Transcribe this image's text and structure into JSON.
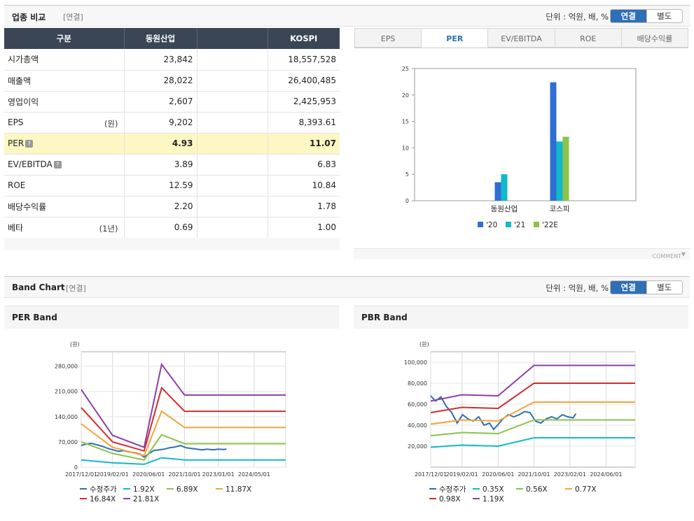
{
  "industry": {
    "title": "업종 비교",
    "sub": "[연결]",
    "unit": "단위 : 억원, 배, %",
    "toggle": {
      "on": "연결",
      "off": "별도"
    },
    "table": {
      "headers": [
        "구분",
        "동원산업",
        "",
        "KOSPI"
      ],
      "rows": [
        {
          "label": "시가총액",
          "unit": "",
          "company": "23,842",
          "kospi": "18,557,528"
        },
        {
          "label": "매출액",
          "unit": "",
          "company": "28,022",
          "kospi": "26,400,485"
        },
        {
          "label": "영업이익",
          "unit": "",
          "company": "2,607",
          "kospi": "2,425,953"
        },
        {
          "label": "EPS",
          "unit": "(원)",
          "company": "9,202",
          "kospi": "8,393.61"
        },
        {
          "label": "PER",
          "unit": "",
          "company": "4.93",
          "kospi": "11.07",
          "highlight": true,
          "help": true
        },
        {
          "label": "EV/EBITDA",
          "unit": "",
          "company": "3.89",
          "kospi": "6.83",
          "help": true
        },
        {
          "label": "ROE",
          "unit": "",
          "company": "12.59",
          "kospi": "10.84"
        },
        {
          "label": "배당수익률",
          "unit": "",
          "company": "2.20",
          "kospi": "1.78"
        },
        {
          "label": "베타",
          "unit": "(1년)",
          "company": "0.69",
          "kospi": "1.00"
        }
      ]
    },
    "tabs": [
      "EPS",
      "PER",
      "EV/EBITDA",
      "ROE",
      "배당수익률"
    ],
    "active_tab": "PER",
    "comment_label": "COMMENT"
  },
  "band": {
    "title": "Band Chart",
    "sub": "[연결]",
    "unit": "단위 : 억원, 배, %",
    "toggle": {
      "on": "연결",
      "off": "별도"
    }
  },
  "colors": {
    "header_dark": "#3a4655",
    "accent": "#2f6fb5",
    "highlight": "#fdf7c4"
  },
  "chart_data": [
    {
      "type": "bar",
      "title": "PER",
      "categories": [
        "동원산업",
        "코스피"
      ],
      "series": [
        {
          "name": "'20",
          "color": "#2f6fd4",
          "values": [
            3.5,
            22.4
          ]
        },
        {
          "name": "'21",
          "color": "#12b8cc",
          "values": [
            5.0,
            11.2
          ]
        },
        {
          "name": "'22E",
          "color": "#8bc34a",
          "values": [
            null,
            12.1
          ]
        }
      ],
      "ylim": [
        0,
        25
      ],
      "yticks": [
        0,
        5,
        10,
        15,
        20,
        25
      ]
    },
    {
      "type": "line",
      "title": "PER Band",
      "ylabel": "(원)",
      "ylim": [
        0,
        320000
      ],
      "yticks": [
        0,
        70000,
        140000,
        210000,
        280000
      ],
      "ytick_labels": [
        "0",
        "70,000",
        "140,000",
        "210,000",
        "280,000"
      ],
      "xlim": [
        2017.92,
        2025.5
      ],
      "xticks": [
        2017.92,
        2019.08,
        2020.42,
        2021.75,
        2023.0,
        2024.33,
        2025.5
      ],
      "xtick_labels": [
        "2017/12/01",
        "2019/02/01",
        "2020/06/01",
        "2021/10/01",
        "2023/01/01",
        "2024/05/01"
      ],
      "series": [
        {
          "name": "수정주가",
          "color": "#2c6fb8",
          "x": [
            2017.92,
            2018.1,
            2018.3,
            2018.5,
            2018.7,
            2018.9,
            2019.1,
            2019.3,
            2019.5,
            2019.7,
            2019.9,
            2020.1,
            2020.25,
            2020.4,
            2020.6,
            2020.8,
            2021.0,
            2021.2,
            2021.4,
            2021.6,
            2021.8,
            2022.0,
            2022.2,
            2022.4,
            2022.6,
            2022.8,
            2023.0,
            2023.2,
            2023.3
          ],
          "y": [
            60000,
            64000,
            66000,
            62000,
            58000,
            52000,
            48000,
            44000,
            46000,
            42000,
            40000,
            36000,
            28000,
            36000,
            46000,
            48000,
            50000,
            54000,
            56000,
            60000,
            54000,
            52000,
            50000,
            48000,
            50000,
            48000,
            50000,
            49000,
            50000
          ]
        },
        {
          "name": "1.92X",
          "color": "#12b8cc",
          "x": [
            2017.92,
            2019.08,
            2020.25,
            2020.9,
            2021.75,
            2025.5
          ],
          "y": [
            20000,
            12000,
            8000,
            26000,
            20000,
            20000
          ]
        },
        {
          "name": "6.89X",
          "color": "#8bc34a",
          "x": [
            2017.92,
            2019.08,
            2020.25,
            2020.9,
            2021.75,
            2025.5
          ],
          "y": [
            70000,
            38000,
            20000,
            90000,
            65000,
            65000
          ]
        },
        {
          "name": "11.87X",
          "color": "#f2a53b",
          "x": [
            2017.92,
            2019.08,
            2020.25,
            2020.9,
            2021.75,
            2025.5
          ],
          "y": [
            120000,
            55000,
            32000,
            155000,
            110000,
            110000
          ]
        },
        {
          "name": "16.84X",
          "color": "#d02d2d",
          "x": [
            2017.92,
            2019.08,
            2020.25,
            2020.9,
            2021.75,
            2025.5
          ],
          "y": [
            165000,
            70000,
            45000,
            220000,
            155000,
            155000
          ]
        },
        {
          "name": "21.81X",
          "color": "#8c3fa8",
          "x": [
            2017.92,
            2019.08,
            2020.25,
            2020.9,
            2021.75,
            2025.5
          ],
          "y": [
            215000,
            88000,
            55000,
            285000,
            200000,
            200000
          ]
        }
      ]
    },
    {
      "type": "line",
      "title": "PBR Band",
      "ylabel": "(원)",
      "ylim": [
        0,
        110000
      ],
      "yticks": [
        20000,
        40000,
        60000,
        80000,
        100000
      ],
      "ytick_labels": [
        "20,000",
        "40,000",
        "60,000",
        "80,000",
        "100,000"
      ],
      "xlim": [
        2017.92,
        2025.5
      ],
      "xticks": [
        2017.92,
        2019.08,
        2020.42,
        2021.75,
        2023.08,
        2024.42,
        2025.5
      ],
      "xtick_labels": [
        "2017/12/01",
        "2019/02/01",
        "2020/06/01",
        "2021/10/01",
        "2023/02/01",
        "2024/06/01"
      ],
      "series": [
        {
          "name": "수정주가",
          "color": "#2c6fb8",
          "x": [
            2017.92,
            2018.1,
            2018.3,
            2018.5,
            2018.7,
            2018.9,
            2019.1,
            2019.3,
            2019.5,
            2019.7,
            2019.9,
            2020.1,
            2020.25,
            2020.4,
            2020.6,
            2020.8,
            2021.0,
            2021.2,
            2021.4,
            2021.6,
            2021.8,
            2022.0,
            2022.2,
            2022.4,
            2022.6,
            2022.8,
            2023.0,
            2023.2,
            2023.3
          ],
          "y": [
            68000,
            63000,
            67000,
            58000,
            52000,
            42000,
            50000,
            46000,
            44000,
            48000,
            40000,
            42000,
            36000,
            40000,
            46000,
            50000,
            48000,
            50000,
            53000,
            52000,
            44000,
            42000,
            46000,
            48000,
            46000,
            50000,
            48000,
            47000,
            51000
          ]
        },
        {
          "name": "0.35X",
          "color": "#12b8cc",
          "x": [
            2017.92,
            2019.08,
            2020.42,
            2021.75,
            2025.5
          ],
          "y": [
            19000,
            21000,
            20000,
            28000,
            28000
          ]
        },
        {
          "name": "0.56X",
          "color": "#8bc34a",
          "x": [
            2017.92,
            2019.08,
            2020.42,
            2021.75,
            2025.5
          ],
          "y": [
            30000,
            33000,
            32000,
            45000,
            45000
          ]
        },
        {
          "name": "0.77X",
          "color": "#f2a53b",
          "x": [
            2017.92,
            2019.08,
            2020.42,
            2021.75,
            2025.5
          ],
          "y": [
            41000,
            45000,
            44000,
            62000,
            62000
          ]
        },
        {
          "name": "0.98X",
          "color": "#d02d2d",
          "x": [
            2017.92,
            2019.08,
            2020.42,
            2021.75,
            2025.5
          ],
          "y": [
            52000,
            57000,
            56000,
            80000,
            80000
          ]
        },
        {
          "name": "1.19X",
          "color": "#8c3fa8",
          "x": [
            2017.92,
            2019.08,
            2020.42,
            2021.75,
            2025.5
          ],
          "y": [
            63000,
            69000,
            68000,
            97000,
            97000
          ]
        }
      ]
    }
  ]
}
